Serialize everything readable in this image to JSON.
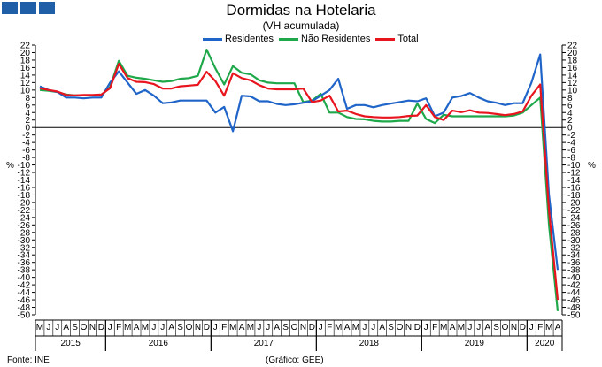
{
  "header": {
    "title": "Dormidas na Hotelaria",
    "subtitle": "(VH acumulada)"
  },
  "footer": {
    "source": "Fonte: INE",
    "credit": "(Gráfico: GEE)"
  },
  "colors": {
    "residentes": "#1f64c8",
    "nao_residentes": "#1ea84a",
    "total": "#e8141e",
    "logo": "#1f5fa8"
  },
  "chart_data": {
    "type": "line",
    "title": "Dormidas na Hotelaria",
    "subtitle": "(VH acumulada)",
    "ylabel": "%",
    "ylim": [
      -50,
      22
    ],
    "y_ticks": [
      22,
      20,
      18,
      16,
      14,
      12,
      10,
      8,
      6,
      4,
      2,
      0,
      -2,
      -4,
      -6,
      -8,
      -10,
      -12,
      -14,
      -16,
      -18,
      -20,
      -22,
      -24,
      -26,
      -28,
      -30,
      -32,
      -34,
      -36,
      -38,
      -40,
      -42,
      -44,
      -46,
      -48,
      -50
    ],
    "grid": false,
    "legend_position": "top",
    "x": [
      "M",
      "J",
      "J",
      "A",
      "S",
      "O",
      "N",
      "D",
      "J",
      "F",
      "M",
      "A",
      "M",
      "J",
      "J",
      "A",
      "S",
      "O",
      "N",
      "D",
      "J",
      "F",
      "M",
      "A",
      "M",
      "J",
      "J",
      "A",
      "S",
      "O",
      "N",
      "D",
      "J",
      "F",
      "M",
      "A",
      "M",
      "J",
      "J",
      "A",
      "S",
      "O",
      "N",
      "D",
      "J",
      "F",
      "M",
      "A",
      "M",
      "J",
      "J",
      "A",
      "S",
      "O",
      "N",
      "D",
      "J",
      "F",
      "M",
      "A"
    ],
    "years": [
      {
        "label": "2015",
        "start": 0,
        "end": 7
      },
      {
        "label": "2016",
        "start": 8,
        "end": 19
      },
      {
        "label": "2017",
        "start": 20,
        "end": 31
      },
      {
        "label": "2018",
        "start": 32,
        "end": 43
      },
      {
        "label": "2019",
        "start": 44,
        "end": 55
      },
      {
        "label": "2020",
        "start": 56,
        "end": 59
      }
    ],
    "series": [
      {
        "name": "Residentes",
        "values": [
          11,
          10,
          9.5,
          8,
          8,
          7.8,
          8,
          8,
          12,
          15,
          12,
          9,
          10,
          8.5,
          6.5,
          6.7,
          7.2,
          7.2,
          7.2,
          7.2,
          4,
          5.5,
          -1,
          8.5,
          8.3,
          7,
          7,
          6.3,
          6,
          6.2,
          6.6,
          7,
          8.5,
          10,
          13,
          5,
          6,
          6,
          5.4,
          6,
          6.4,
          6.8,
          7.2,
          7,
          7.8,
          3,
          4,
          8,
          8.4,
          9.2,
          8,
          7,
          6.6,
          6,
          6.5,
          6.5,
          12,
          19.5,
          -18,
          -38
        ]
      },
      {
        "name": "Não Residentes",
        "values": [
          10,
          9.8,
          9.5,
          8.8,
          8.6,
          8.6,
          8.6,
          8.6,
          10.8,
          17.8,
          13.8,
          13.3,
          13,
          12.6,
          12.2,
          12.4,
          13,
          13.2,
          13.8,
          20.8,
          15.8,
          11.5,
          16.4,
          14.6,
          14.2,
          12.6,
          12,
          11.8,
          11.8,
          11.8,
          6.8,
          7.2,
          9,
          4,
          4,
          2.8,
          2.3,
          2.2,
          1.8,
          1.6,
          1.6,
          1.8,
          1.8,
          6.4,
          2.3,
          1.2,
          3.4,
          3,
          3,
          3,
          3,
          3,
          3,
          3,
          3.2,
          4,
          6,
          8,
          -26,
          -49
        ]
      },
      {
        "name": "Total",
        "values": [
          10.5,
          10,
          9.6,
          8.7,
          8.6,
          8.7,
          8.7,
          8.8,
          10.5,
          17,
          13.2,
          12.2,
          12.1,
          11.6,
          10.4,
          10.4,
          11,
          11.2,
          11.4,
          14.9,
          12.4,
          8.5,
          14.5,
          13.2,
          12.6,
          11.3,
          10.4,
          10.2,
          10.2,
          10.2,
          10.4,
          6.8,
          7.2,
          8.5,
          4.3,
          4.5,
          3.6,
          3,
          2.8,
          2.7,
          2.7,
          2.8,
          3.1,
          3.2,
          6,
          2.8,
          2,
          4.5,
          4.1,
          4.6,
          4,
          3.9,
          3.6,
          3.3,
          3.6,
          4.3,
          8.5,
          11.5,
          -22,
          -46
        ]
      }
    ]
  }
}
